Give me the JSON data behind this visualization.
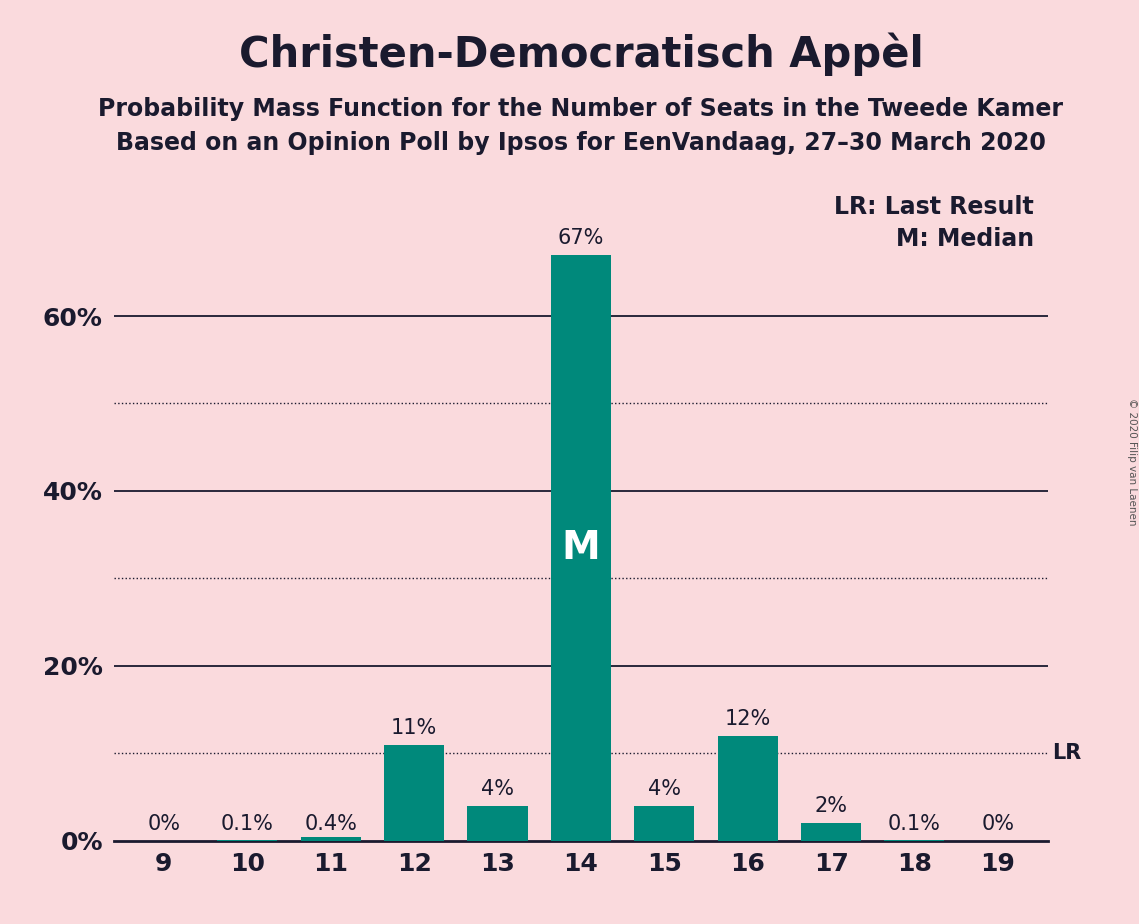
{
  "title": "Christen-Democratisch Appèl",
  "subtitle1": "Probability Mass Function for the Number of Seats in the Tweede Kamer",
  "subtitle2": "Based on an Opinion Poll by Ipsos for EenVandaag, 27–30 March 2020",
  "copyright": "© 2020 Filip van Laenen",
  "categories": [
    9,
    10,
    11,
    12,
    13,
    14,
    15,
    16,
    17,
    18,
    19
  ],
  "values": [
    0.0,
    0.1,
    0.4,
    11.0,
    4.0,
    67.0,
    4.0,
    12.0,
    2.0,
    0.1,
    0.0
  ],
  "labels": [
    "0%",
    "0.1%",
    "0.4%",
    "11%",
    "4%",
    "67%",
    "4%",
    "12%",
    "2%",
    "0.1%",
    "0%"
  ],
  "bar_color": "#00897B",
  "background_color": "#fadadd",
  "text_color": "#1a1a2e",
  "median_seat": 14,
  "last_result_value": 10,
  "lr_label": "LR",
  "lr_legend": "LR: Last Result",
  "m_legend": "M: Median",
  "ylim": [
    0,
    75
  ],
  "solid_yticks": [
    20,
    40,
    60
  ],
  "dotted_yticks": [
    10,
    30,
    50
  ],
  "shown_ytick_labels": [
    0,
    20,
    40,
    60
  ],
  "title_fontsize": 30,
  "subtitle_fontsize": 17,
  "label_fontsize": 15,
  "tick_fontsize": 18,
  "legend_fontsize": 17,
  "m_fontsize": 28
}
